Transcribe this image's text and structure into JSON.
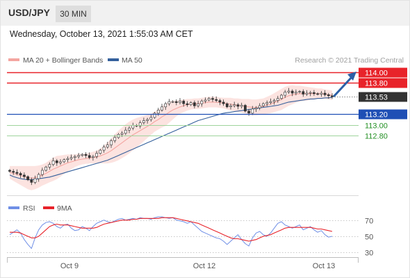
{
  "header": {
    "symbol": "USD/JPY",
    "timeframe": "30 MIN",
    "datetime": "Wednesday, October 13, 2021 1:55:03 AM CET"
  },
  "colors": {
    "ma20": "#f4a5a0",
    "bollinger": "#fbd9d6",
    "ma50": "#34609c",
    "resistance": "#e8232a",
    "pivot": "#1f4fb5",
    "support": "#9ed49c",
    "support_text": "#249024",
    "price_tag": "#333333",
    "rsi": "#6f8fe6",
    "rsi_ma": "#e8232a",
    "arrow": "#2c5fa6"
  },
  "chart_data": [
    {
      "type": "line",
      "title": "",
      "legend": [
        {
          "name": "MA 20 + Bollinger Bands",
          "color": "#f4a5a0"
        },
        {
          "name": "MA 50",
          "color": "#34609c"
        }
      ],
      "legend_position": "top-left",
      "credit": "Research © 2021 Trading Central",
      "x_labels": [
        "Oct 9",
        "Oct 12",
        "Oct 13"
      ],
      "y_range": [
        111.6,
        114.1
      ],
      "current_price": "113.53",
      "levels": [
        {
          "value": 114.0,
          "label": "114.00",
          "kind": "resistance"
        },
        {
          "value": 113.8,
          "label": "113.80",
          "kind": "resistance"
        },
        {
          "value": 113.2,
          "label": "113.20",
          "kind": "pivot"
        },
        {
          "value": 113.0,
          "label": "113.00",
          "kind": "support"
        },
        {
          "value": 112.8,
          "label": "112.80",
          "kind": "support"
        }
      ],
      "price_close": [
        112.12,
        112.1,
        112.08,
        112.05,
        112.02,
        111.96,
        111.91,
        111.98,
        112.06,
        112.14,
        112.2,
        112.25,
        112.32,
        112.28,
        112.3,
        112.34,
        112.36,
        112.38,
        112.4,
        112.42,
        112.44,
        112.42,
        112.38,
        112.4,
        112.46,
        112.52,
        112.58,
        112.62,
        112.7,
        112.76,
        112.82,
        112.84,
        112.9,
        112.94,
        112.99,
        112.98,
        113.04,
        113.08,
        113.1,
        113.14,
        113.22,
        113.28,
        113.34,
        113.4,
        113.44,
        113.44,
        113.42,
        113.45,
        113.4,
        113.38,
        113.42,
        113.36,
        113.4,
        113.45,
        113.47,
        113.5,
        113.48,
        113.46,
        113.43,
        113.4,
        113.34,
        113.36,
        113.38,
        113.35,
        113.37,
        113.26,
        113.22,
        113.3,
        113.32,
        113.36,
        113.4,
        113.42,
        113.44,
        113.46,
        113.5,
        113.56,
        113.62,
        113.64,
        113.6,
        113.62,
        113.63,
        113.58,
        113.6,
        113.61,
        113.59,
        113.58,
        113.6,
        113.57,
        113.55,
        113.53
      ],
      "ma20": [
        112.1,
        112.08,
        112.06,
        112.04,
        112.02,
        112.0,
        111.99,
        112.0,
        112.02,
        112.05,
        112.08,
        112.12,
        112.16,
        112.19,
        112.22,
        112.25,
        112.28,
        112.3,
        112.32,
        112.34,
        112.35,
        112.36,
        112.37,
        112.38,
        112.39,
        112.41,
        112.44,
        112.47,
        112.51,
        112.56,
        112.61,
        112.66,
        112.71,
        112.76,
        112.81,
        112.85,
        112.89,
        112.93,
        112.97,
        113.01,
        113.06,
        113.1,
        113.15,
        113.19,
        113.24,
        113.28,
        113.31,
        113.34,
        113.36,
        113.38,
        113.39,
        113.4,
        113.4,
        113.41,
        113.42,
        113.43,
        113.43,
        113.43,
        113.42,
        113.41,
        113.4,
        113.39,
        113.38,
        113.37,
        113.36,
        113.35,
        113.34,
        113.33,
        113.33,
        113.34,
        113.35,
        113.37,
        113.39,
        113.42,
        113.45,
        113.48,
        113.52,
        113.55,
        113.57,
        113.58,
        113.59,
        113.59,
        113.59,
        113.59,
        113.59,
        113.59,
        113.59,
        113.58,
        113.57,
        113.56
      ],
      "ma50": [
        112.05,
        112.02,
        112.0,
        111.98,
        111.97,
        111.96,
        111.96,
        111.97,
        111.98,
        111.99,
        112.0,
        112.01,
        112.03,
        112.05,
        112.07,
        112.09,
        112.11,
        112.13,
        112.15,
        112.17,
        112.19,
        112.21,
        112.23,
        112.25,
        112.27,
        112.29,
        112.31,
        112.33,
        112.36,
        112.39,
        112.42,
        112.45,
        112.48,
        112.51,
        112.54,
        112.57,
        112.6,
        112.63,
        112.66,
        112.69,
        112.72,
        112.75,
        112.78,
        112.81,
        112.84,
        112.87,
        112.9,
        112.93,
        112.96,
        112.99,
        113.02,
        113.05,
        113.08,
        113.1,
        113.12,
        113.14,
        113.16,
        113.18,
        113.2,
        113.22,
        113.23,
        113.24,
        113.25,
        113.26,
        113.27,
        113.28,
        113.29,
        113.3,
        113.31,
        113.32,
        113.33,
        113.34,
        113.35,
        113.36,
        113.37,
        113.39,
        113.41,
        113.43,
        113.44,
        113.45,
        113.46,
        113.47,
        113.48,
        113.49,
        113.49,
        113.5,
        113.5,
        113.51,
        113.51,
        113.52
      ],
      "bollinger_width": [
        0.12,
        0.14,
        0.16,
        0.18,
        0.2,
        0.22,
        0.23,
        0.22,
        0.21,
        0.2,
        0.2,
        0.21,
        0.22,
        0.22,
        0.2,
        0.18,
        0.16,
        0.14,
        0.12,
        0.11,
        0.1,
        0.1,
        0.1,
        0.11,
        0.12,
        0.14,
        0.17,
        0.2,
        0.23,
        0.26,
        0.28,
        0.29,
        0.3,
        0.3,
        0.29,
        0.28,
        0.26,
        0.24,
        0.22,
        0.2,
        0.19,
        0.19,
        0.2,
        0.21,
        0.2,
        0.18,
        0.15,
        0.13,
        0.12,
        0.11,
        0.1,
        0.1,
        0.1,
        0.1,
        0.1,
        0.1,
        0.1,
        0.1,
        0.1,
        0.1,
        0.11,
        0.12,
        0.12,
        0.13,
        0.13,
        0.14,
        0.15,
        0.15,
        0.15,
        0.15,
        0.15,
        0.16,
        0.17,
        0.18,
        0.19,
        0.2,
        0.2,
        0.19,
        0.18,
        0.16,
        0.15,
        0.14,
        0.13,
        0.12,
        0.11,
        0.1,
        0.1,
        0.09,
        0.09,
        0.09
      ]
    },
    {
      "type": "line",
      "title": "",
      "legend": [
        {
          "name": "RSI",
          "color": "#6f8fe6"
        },
        {
          "name": "9MA",
          "color": "#e8232a"
        }
      ],
      "legend_position": "top-left",
      "y_range": [
        20,
        80
      ],
      "y_ticks": [
        70,
        50,
        30
      ],
      "rsi": [
        52,
        55,
        58,
        54,
        46,
        40,
        35,
        48,
        58,
        64,
        67,
        68,
        66,
        62,
        60,
        64,
        65,
        60,
        57,
        58,
        62,
        60,
        57,
        62,
        66,
        68,
        70,
        68,
        67,
        69,
        71,
        72,
        70,
        71,
        72,
        71,
        73,
        72,
        72,
        71,
        73,
        74,
        74,
        73,
        72,
        73,
        70,
        69,
        68,
        66,
        68,
        64,
        60,
        56,
        54,
        52,
        50,
        48,
        47,
        44,
        40,
        44,
        48,
        52,
        46,
        41,
        38,
        48,
        54,
        56,
        52,
        50,
        54,
        60,
        66,
        68,
        64,
        62,
        60,
        62,
        64,
        58,
        60,
        62,
        58,
        55,
        57,
        52,
        49,
        50
      ],
      "rsi_ma": [
        55,
        55,
        55,
        54,
        52,
        50,
        48,
        48,
        50,
        54,
        58,
        62,
        64,
        65,
        64,
        64,
        64,
        63,
        62,
        61,
        60,
        60,
        60,
        60,
        61,
        63,
        65,
        66,
        67,
        68,
        69,
        70,
        70,
        70,
        71,
        71,
        72,
        72,
        72,
        72,
        72,
        72,
        73,
        73,
        73,
        73,
        72,
        71,
        70,
        69,
        68,
        67,
        66,
        64,
        62,
        60,
        58,
        56,
        54,
        52,
        50,
        48,
        47,
        47,
        46,
        45,
        44,
        45,
        46,
        48,
        50,
        51,
        52,
        54,
        56,
        58,
        60,
        61,
        61,
        61,
        61,
        61,
        61,
        61,
        60,
        59,
        59,
        58,
        57,
        56
      ]
    }
  ]
}
